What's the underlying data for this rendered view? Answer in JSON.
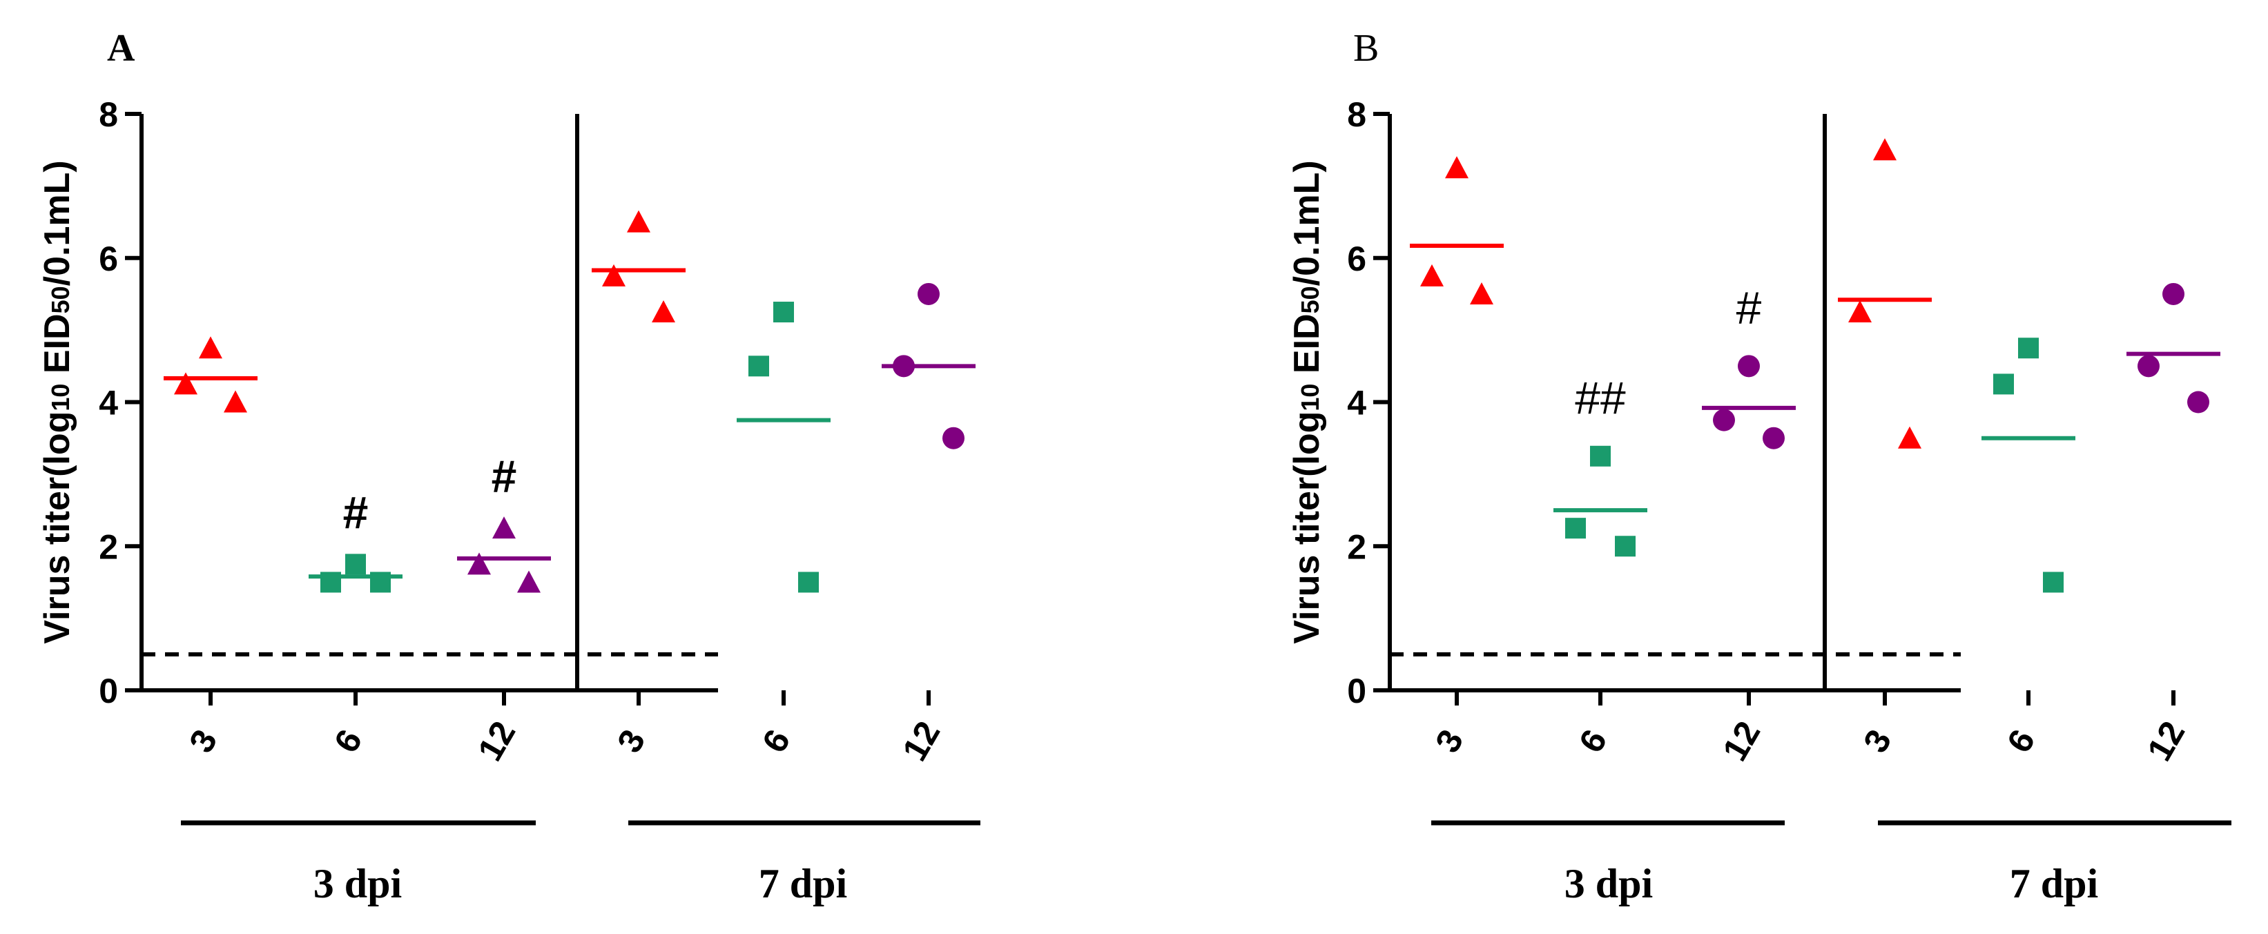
{
  "chart_data": [
    {
      "type": "scatter",
      "panel": "A",
      "ylabel": "Virus titer(log10 EID50/0.1mL)",
      "ylim": [
        0,
        8
      ],
      "yticks": [
        "0",
        "2",
        "4",
        "6",
        "8"
      ],
      "detection_limit": 0.5,
      "groups": [
        {
          "name": "3 dpi",
          "categories": [
            "3",
            "6",
            "12"
          ]
        },
        {
          "name": "7 dpi",
          "categories": [
            "3",
            "6",
            "12"
          ]
        }
      ],
      "series": [
        {
          "group": "3 dpi",
          "category": "3",
          "marker": "triangle",
          "color": "#ff0000",
          "points": [
            4.25,
            4.75,
            4.0
          ],
          "mean": 4.33,
          "sig": ""
        },
        {
          "group": "3 dpi",
          "category": "6",
          "marker": "square",
          "color": "#1a9b6c",
          "points": [
            1.75,
            1.5,
            1.5
          ],
          "mean": 1.58,
          "sig": "#"
        },
        {
          "group": "3 dpi",
          "category": "12",
          "marker": "triangle",
          "color": "#800080",
          "points": [
            1.75,
            2.25,
            1.5
          ],
          "mean": 1.83,
          "sig": "#"
        },
        {
          "group": "7 dpi",
          "category": "3",
          "marker": "triangle",
          "color": "#ff0000",
          "points": [
            6.5,
            5.75,
            5.25
          ],
          "mean": 5.83,
          "sig": ""
        },
        {
          "group": "7 dpi",
          "category": "6",
          "marker": "square",
          "color": "#1a9b6c",
          "points": [
            5.25,
            4.5,
            1.5
          ],
          "mean": 3.75,
          "sig": ""
        },
        {
          "group": "7 dpi",
          "category": "12",
          "marker": "circle",
          "color": "#800080",
          "points": [
            5.5,
            4.5,
            3.5
          ],
          "mean": 4.5,
          "sig": ""
        }
      ]
    },
    {
      "type": "scatter",
      "panel": "B",
      "ylabel": "Virus titer(log10 EID50/0.1mL)",
      "ylim": [
        0,
        8
      ],
      "yticks": [
        "0",
        "2",
        "4",
        "6",
        "8"
      ],
      "detection_limit": 0.5,
      "groups": [
        {
          "name": "3 dpi",
          "categories": [
            "3",
            "6",
            "12"
          ]
        },
        {
          "name": "7 dpi",
          "categories": [
            "3",
            "6",
            "12"
          ]
        }
      ],
      "series": [
        {
          "group": "3 dpi",
          "category": "3",
          "marker": "triangle",
          "color": "#ff0000",
          "points": [
            7.25,
            5.75,
            5.5
          ],
          "mean": 6.17,
          "sig": ""
        },
        {
          "group": "3 dpi",
          "category": "6",
          "marker": "square",
          "color": "#1a9b6c",
          "points": [
            3.25,
            2.25,
            2.0
          ],
          "mean": 2.5,
          "sig": "##"
        },
        {
          "group": "3 dpi",
          "category": "12",
          "marker": "circle",
          "color": "#800080",
          "points": [
            4.5,
            3.75,
            3.5
          ],
          "mean": 3.92,
          "sig": "#"
        },
        {
          "group": "7 dpi",
          "category": "3",
          "marker": "triangle",
          "color": "#ff0000",
          "points": [
            7.5,
            5.25,
            3.5
          ],
          "mean": 5.42,
          "sig": ""
        },
        {
          "group": "7 dpi",
          "category": "6",
          "marker": "square",
          "color": "#1a9b6c",
          "points": [
            4.75,
            4.25,
            1.5
          ],
          "mean": 3.5,
          "sig": ""
        },
        {
          "group": "7 dpi",
          "category": "12",
          "marker": "circle",
          "color": "#800080",
          "points": [
            5.5,
            4.5,
            4.0
          ],
          "mean": 4.67,
          "sig": ""
        }
      ]
    }
  ]
}
